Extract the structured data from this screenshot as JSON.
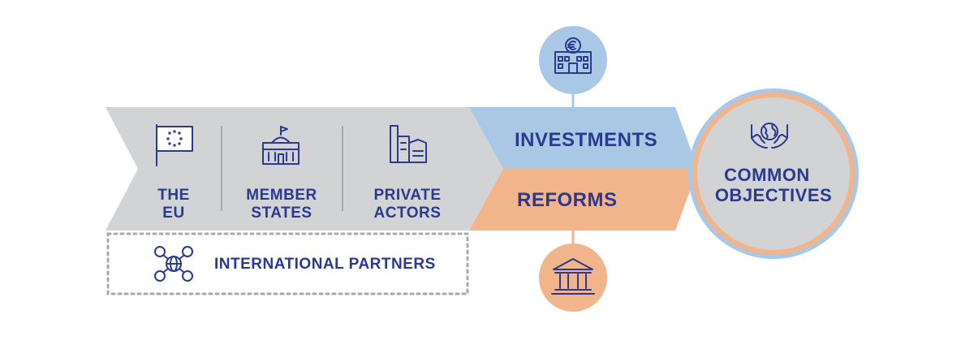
{
  "actors": {
    "the_eu": [
      "THE",
      "EU"
    ],
    "member_states": [
      "MEMBER",
      "STATES"
    ],
    "private_actors": [
      "PRIVATE",
      "ACTORS"
    ]
  },
  "international_partners": "INTERNATIONAL PARTNERS",
  "investments": "INVESTMENTS",
  "reforms": "REFORMS",
  "objectives": [
    "COMMON",
    "OBJECTIVES"
  ],
  "icons": {
    "eu": "eu-flag-icon",
    "member_states": "parliament-building-icon",
    "private_actors": "factory-icon",
    "partners": "globe-network-icon",
    "investments": "bank-euro-building-icon",
    "reforms": "classical-institution-icon",
    "objectives": "hands-globe-icon"
  },
  "colors": {
    "navy": "#2b3990",
    "grey": "#d2d3d5",
    "blue": "#a8c8e6",
    "orange": "#f2b48a",
    "divider": "#a7a9ac"
  }
}
